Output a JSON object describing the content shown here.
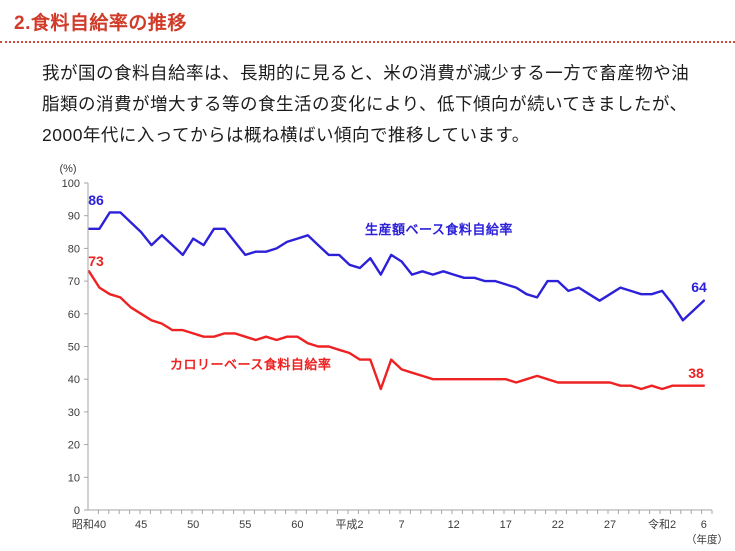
{
  "page": {
    "title": "2.食料自給率の推移"
  },
  "paragraph": {
    "lines": [
      "我が国の食料自給率は、長期的に見ると、米の消費が減少する一方で畜産物や油",
      "脂類の消費が増大する等の食生活の変化により、低下傾向が続いてきましたが、",
      "2000年代に入ってからは概ね横ばい傾向で推移しています。"
    ]
  },
  "colors": {
    "title_red": "#d13b2a",
    "production_blue": "#2c21d9",
    "calorie_red": "#ee2222",
    "axis_gray": "#a6a6a6"
  },
  "chart_data": {
    "type": "line",
    "title": "",
    "xlabel": "",
    "ylabel": "",
    "y_axis_unit_label": "(%)",
    "x_axis_unit_label": "（年度）",
    "ylim": [
      0,
      100
    ],
    "y_ticks": [
      0,
      10,
      20,
      30,
      40,
      50,
      60,
      70,
      80,
      90,
      100
    ],
    "grid": false,
    "legend_position": "inline-labels",
    "start_year": 1965,
    "x_tick_labels": [
      {
        "label": "昭和40",
        "year": 1965
      },
      {
        "label": "45",
        "year": 1970
      },
      {
        "label": "50",
        "year": 1975
      },
      {
        "label": "55",
        "year": 1980
      },
      {
        "label": "60",
        "year": 1985
      },
      {
        "label": "平成2",
        "year": 1990
      },
      {
        "label": "7",
        "year": 1995
      },
      {
        "label": "12",
        "year": 2000
      },
      {
        "label": "17",
        "year": 2005
      },
      {
        "label": "22",
        "year": 2010
      },
      {
        "label": "27",
        "year": 2015
      },
      {
        "label": "令和2",
        "year": 2020
      },
      {
        "label": "6",
        "year": 2024
      }
    ],
    "series": [
      {
        "name": "生産額ベース食料自給率",
        "color": "#2c21d9",
        "start_label": "86",
        "end_label": "64",
        "values": [
          86,
          86,
          91,
          91,
          88,
          85,
          81,
          84,
          81,
          78,
          83,
          81,
          86,
          86,
          82,
          78,
          79,
          79,
          80,
          82,
          83,
          84,
          81,
          78,
          78,
          75,
          74,
          77,
          72,
          78,
          76,
          72,
          73,
          72,
          73,
          72,
          71,
          71,
          70,
          70,
          69,
          68,
          66,
          65,
          70,
          70,
          67,
          68,
          66,
          64,
          66,
          68,
          67,
          66,
          66,
          67,
          63,
          58,
          61,
          64
        ]
      },
      {
        "name": "カロリーベース食料自給率",
        "color": "#ee2222",
        "start_label": "73",
        "end_label": "38",
        "values": [
          73,
          68,
          66,
          65,
          62,
          60,
          58,
          57,
          55,
          55,
          54,
          53,
          53,
          54,
          54,
          53,
          52,
          53,
          52,
          53,
          53,
          51,
          50,
          50,
          49,
          48,
          46,
          46,
          37,
          46,
          43,
          42,
          41,
          40,
          40,
          40,
          40,
          40,
          40,
          40,
          40,
          39,
          40,
          41,
          40,
          39,
          39,
          39,
          39,
          39,
          39,
          38,
          38,
          37,
          38,
          37,
          38,
          38,
          38,
          38
        ]
      }
    ]
  }
}
